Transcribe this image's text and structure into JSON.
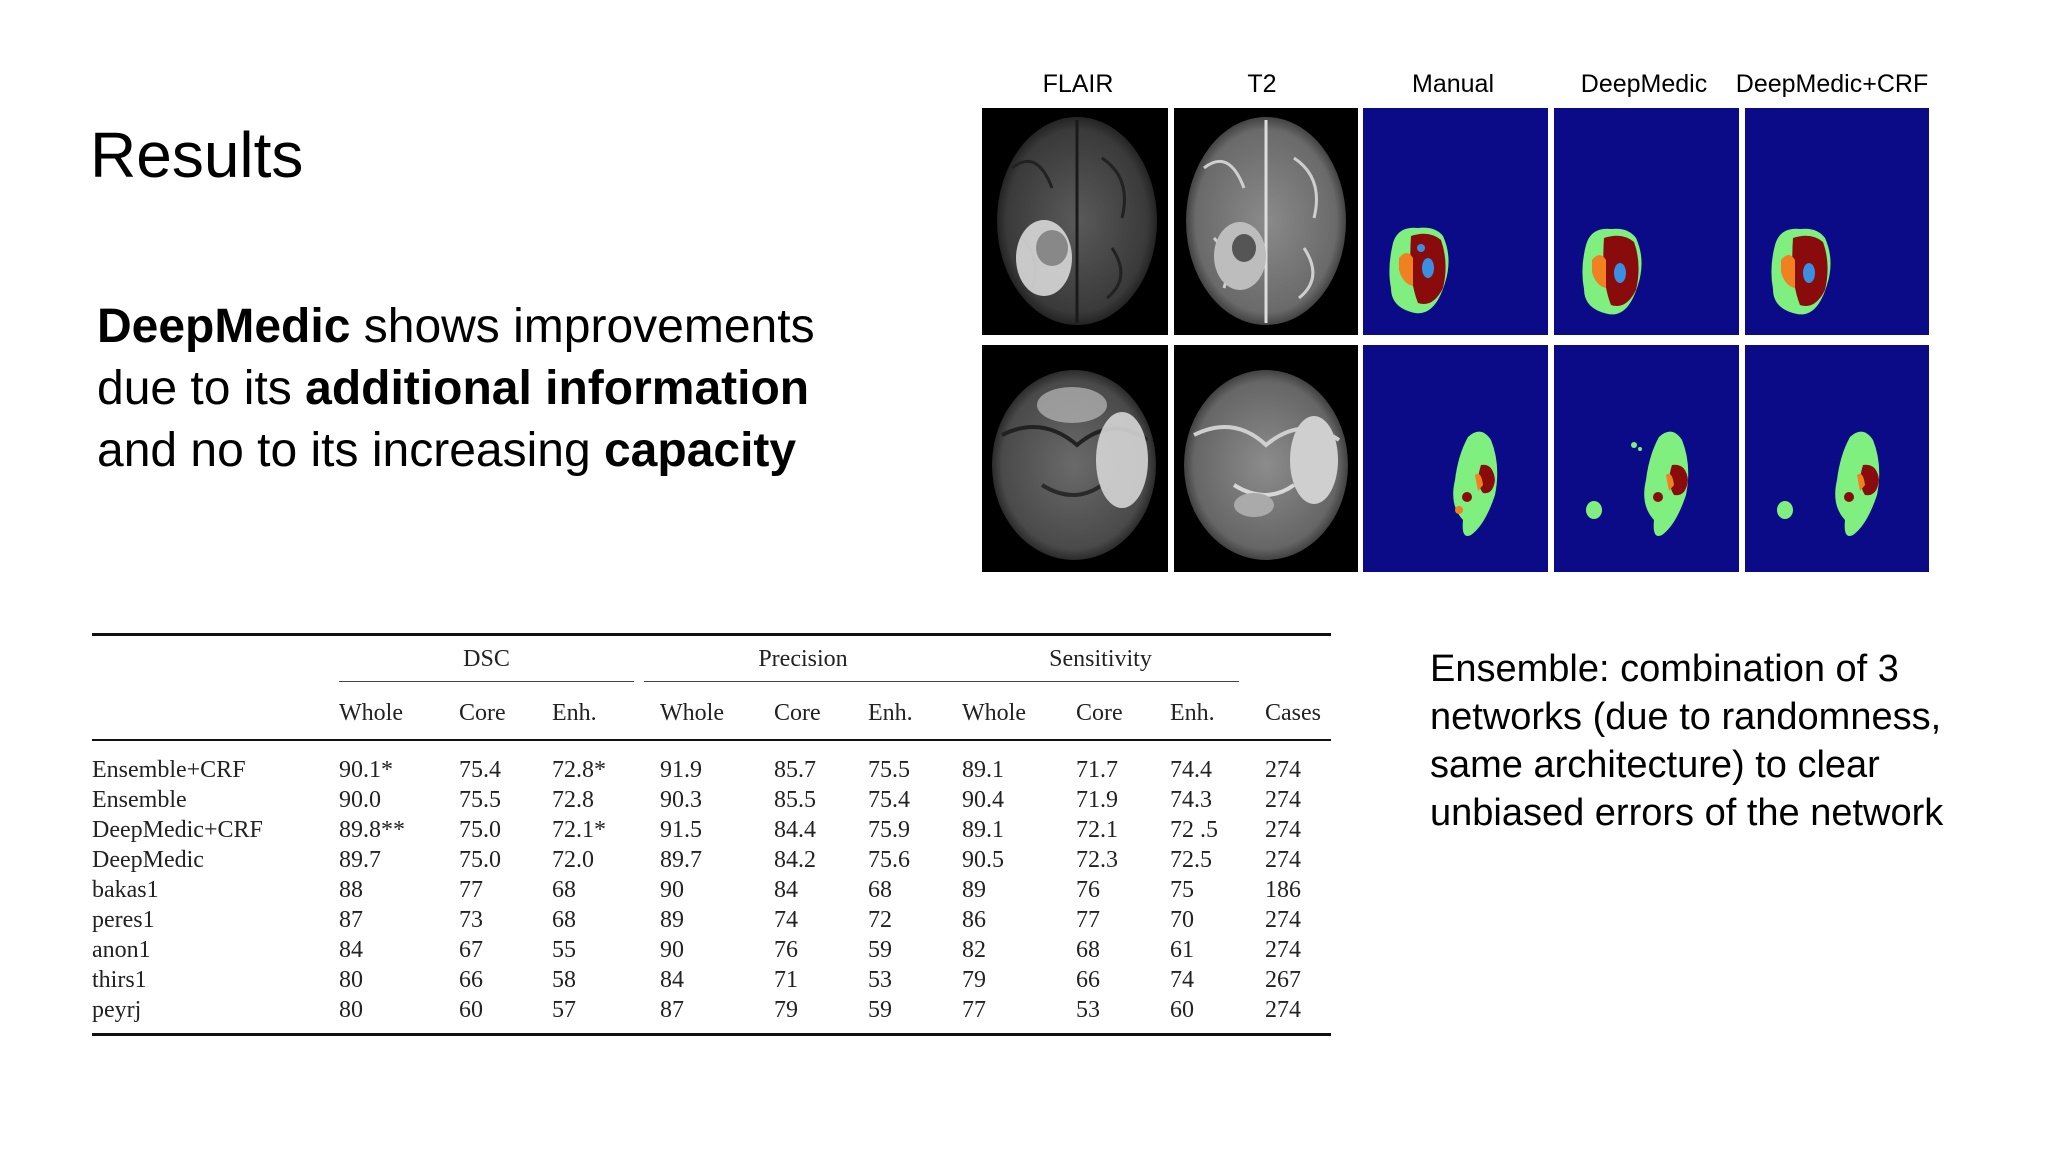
{
  "slide": {
    "title": "Results",
    "main_text": {
      "p1_bold": "DeepMedic",
      "p1_rest": " shows improvements due to its ",
      "p2_bold": "additional information",
      "p2_rest": " and no to its increasing ",
      "p3_bold": "capacity"
    },
    "side_note": "Ensemble: combination of 3 networks (due to randomness, same architecture) to clear unbiased errors of the network"
  },
  "figure": {
    "columns": [
      "FLAIR",
      "T2",
      "Manual",
      "DeepMedic",
      "DeepMedic+CRF"
    ],
    "colors": {
      "background": "#0b0b88",
      "edema": "#7fef7f",
      "core": "#8a0b0b",
      "enhancing": "#f08020",
      "necrosis": "#3b8fe0"
    }
  },
  "table": {
    "group_headers": [
      "DSC",
      "Precision",
      "Sensitivity"
    ],
    "sub_headers": [
      "Whole",
      "Core",
      "Enh.",
      "Whole",
      "Core",
      "Enh.",
      "Whole",
      "Core",
      "Enh.",
      "Cases"
    ],
    "rows": [
      {
        "name": "Ensemble+CRF",
        "cells": [
          "90.1*",
          "75.4",
          "72.8*",
          "91.9",
          "85.7",
          "75.5",
          "89.1",
          "71.7",
          "74.4",
          "274"
        ]
      },
      {
        "name": "Ensemble",
        "cells": [
          "90.0",
          "75.5",
          "72.8",
          "90.3",
          "85.5",
          "75.4",
          "90.4",
          "71.9",
          "74.3",
          "274"
        ]
      },
      {
        "name": "DeepMedic+CRF",
        "cells": [
          "89.8**",
          "75.0",
          "72.1*",
          "91.5",
          "84.4",
          "75.9",
          "89.1",
          "72.1",
          "72 .5",
          "274"
        ]
      },
      {
        "name": "DeepMedic",
        "cells": [
          "89.7",
          "75.0",
          "72.0",
          "89.7",
          "84.2",
          "75.6",
          "90.5",
          "72.3",
          "72.5",
          "274"
        ]
      },
      {
        "name": "bakas1",
        "cells": [
          "88",
          "77",
          "68",
          "90",
          "84",
          "68",
          "89",
          "76",
          "75",
          "186"
        ]
      },
      {
        "name": "peres1",
        "cells": [
          "87",
          "73",
          "68",
          "89",
          "74",
          "72",
          "86",
          "77",
          "70",
          "274"
        ]
      },
      {
        "name": "anon1",
        "cells": [
          "84",
          "67",
          "55",
          "90",
          "76",
          "59",
          "82",
          "68",
          "61",
          "274"
        ]
      },
      {
        "name": "thirs1",
        "cells": [
          "80",
          "66",
          "58",
          "84",
          "71",
          "53",
          "79",
          "66",
          "74",
          "267"
        ]
      },
      {
        "name": "peyrj",
        "cells": [
          "80",
          "60",
          "57",
          "87",
          "79",
          "59",
          "77",
          "53",
          "60",
          "274"
        ]
      }
    ]
  }
}
